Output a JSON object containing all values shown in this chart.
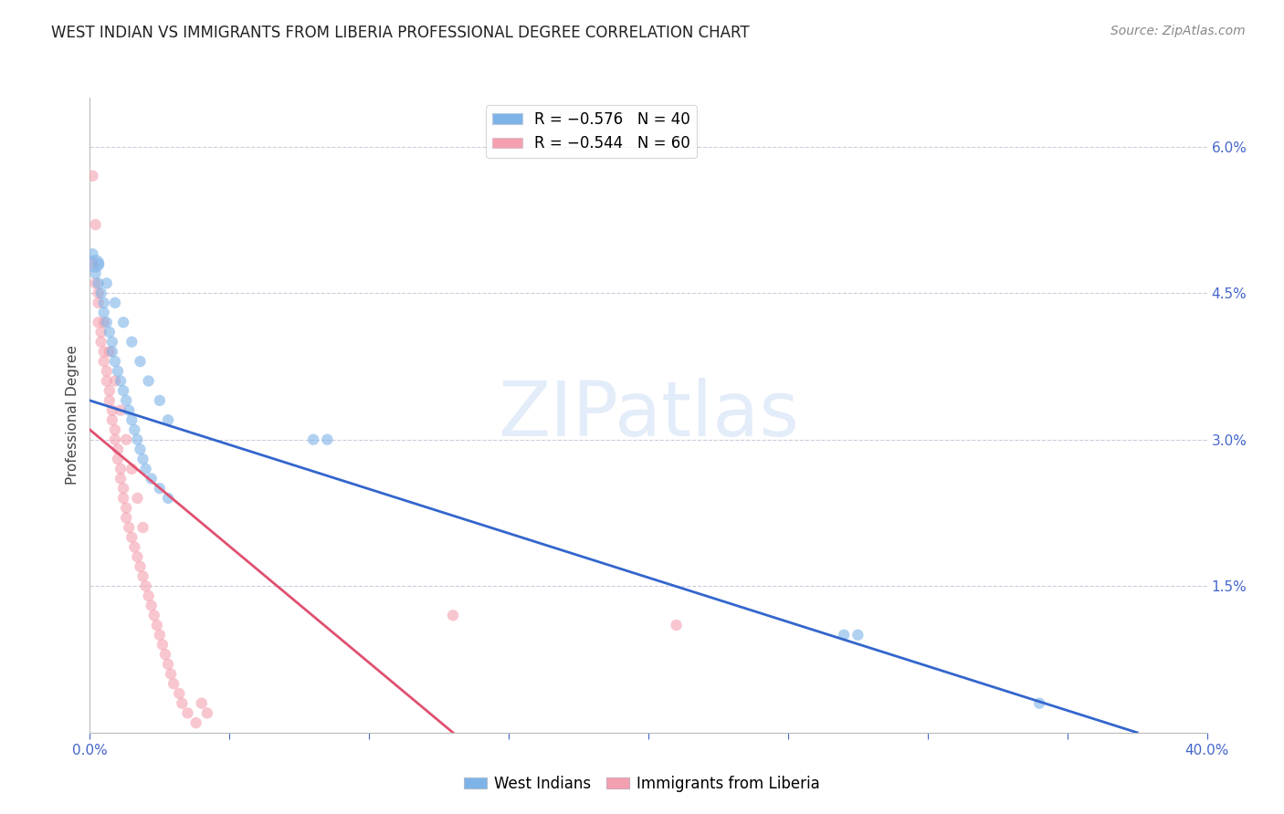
{
  "title": "WEST INDIAN VS IMMIGRANTS FROM LIBERIA PROFESSIONAL DEGREE CORRELATION CHART",
  "source": "Source: ZipAtlas.com",
  "ylabel": "Professional Degree",
  "watermark": "ZIPatlas",
  "xlim": [
    0.0,
    0.4
  ],
  "ylim": [
    0.0,
    0.065
  ],
  "xticks": [
    0.0,
    0.05,
    0.1,
    0.15,
    0.2,
    0.25,
    0.3,
    0.35,
    0.4
  ],
  "xticklabels": [
    "0.0%",
    "",
    "",
    "",
    "",
    "",
    "",
    "",
    "40.0%"
  ],
  "yticks_right": [
    0.0,
    0.015,
    0.03,
    0.045,
    0.06
  ],
  "yticklabels_right": [
    "",
    "1.5%",
    "3.0%",
    "4.5%",
    "6.0%"
  ],
  "legend1_label": "R = −0.576   N = 40",
  "legend2_label": "R = −0.544   N = 60",
  "blue_color": "#7EB3E8",
  "pink_color": "#F4A0B0",
  "blue_line_color": "#3366CC",
  "pink_line_color": "#E05070",
  "right_axis_color": "#4466CC",
  "grid_color": "#CCCCDD",
  "background_color": "#FFFFFF",
  "blue_scatter": {
    "x": [
      0.001,
      0.002,
      0.002,
      0.003,
      0.004,
      0.005,
      0.005,
      0.006,
      0.007,
      0.008,
      0.008,
      0.009,
      0.01,
      0.011,
      0.012,
      0.013,
      0.014,
      0.015,
      0.016,
      0.017,
      0.018,
      0.019,
      0.02,
      0.022,
      0.025,
      0.028,
      0.003,
      0.006,
      0.009,
      0.012,
      0.015,
      0.018,
      0.021,
      0.025,
      0.028,
      0.08,
      0.085,
      0.27,
      0.275,
      0.34
    ],
    "y": [
      0.049,
      0.048,
      0.047,
      0.046,
      0.045,
      0.044,
      0.043,
      0.042,
      0.041,
      0.04,
      0.039,
      0.038,
      0.037,
      0.036,
      0.035,
      0.034,
      0.033,
      0.032,
      0.031,
      0.03,
      0.029,
      0.028,
      0.027,
      0.026,
      0.025,
      0.024,
      0.048,
      0.046,
      0.044,
      0.042,
      0.04,
      0.038,
      0.036,
      0.034,
      0.032,
      0.03,
      0.03,
      0.01,
      0.01,
      0.003
    ],
    "sizes": [
      80,
      200,
      80,
      80,
      80,
      80,
      80,
      80,
      80,
      80,
      80,
      80,
      80,
      80,
      80,
      80,
      80,
      80,
      80,
      80,
      80,
      80,
      80,
      80,
      80,
      80,
      80,
      80,
      80,
      80,
      80,
      80,
      80,
      80,
      80,
      80,
      80,
      80,
      80,
      80
    ]
  },
  "pink_scatter": {
    "x": [
      0.001,
      0.002,
      0.002,
      0.003,
      0.003,
      0.004,
      0.004,
      0.005,
      0.005,
      0.006,
      0.006,
      0.007,
      0.007,
      0.008,
      0.008,
      0.009,
      0.009,
      0.01,
      0.01,
      0.011,
      0.011,
      0.012,
      0.012,
      0.013,
      0.013,
      0.014,
      0.015,
      0.016,
      0.017,
      0.018,
      0.019,
      0.02,
      0.021,
      0.022,
      0.023,
      0.024,
      0.025,
      0.026,
      0.027,
      0.028,
      0.029,
      0.03,
      0.032,
      0.033,
      0.035,
      0.038,
      0.04,
      0.042,
      0.13,
      0.21,
      0.001,
      0.003,
      0.005,
      0.007,
      0.009,
      0.011,
      0.013,
      0.015,
      0.017,
      0.019
    ],
    "y": [
      0.057,
      0.052,
      0.046,
      0.044,
      0.042,
      0.041,
      0.04,
      0.039,
      0.038,
      0.037,
      0.036,
      0.035,
      0.034,
      0.033,
      0.032,
      0.031,
      0.03,
      0.029,
      0.028,
      0.027,
      0.026,
      0.025,
      0.024,
      0.023,
      0.022,
      0.021,
      0.02,
      0.019,
      0.018,
      0.017,
      0.016,
      0.015,
      0.014,
      0.013,
      0.012,
      0.011,
      0.01,
      0.009,
      0.008,
      0.007,
      0.006,
      0.005,
      0.004,
      0.003,
      0.002,
      0.001,
      0.003,
      0.002,
      0.012,
      0.011,
      0.048,
      0.045,
      0.042,
      0.039,
      0.036,
      0.033,
      0.03,
      0.027,
      0.024,
      0.021
    ],
    "sizes": [
      80,
      80,
      80,
      80,
      80,
      80,
      80,
      80,
      80,
      80,
      80,
      80,
      80,
      80,
      80,
      80,
      80,
      80,
      80,
      80,
      80,
      80,
      80,
      80,
      80,
      80,
      80,
      80,
      80,
      80,
      80,
      80,
      80,
      80,
      80,
      80,
      80,
      80,
      80,
      80,
      80,
      80,
      80,
      80,
      80,
      80,
      80,
      80,
      80,
      80,
      80,
      80,
      80,
      80,
      80,
      80,
      80,
      80,
      80,
      80
    ]
  },
  "blue_trendline": {
    "x_start": 0.0,
    "y_start": 0.034,
    "x_end": 0.375,
    "y_end": 0.0
  },
  "pink_trendline": {
    "x_start": 0.0,
    "y_start": 0.031,
    "x_end": 0.13,
    "y_end": 0.0
  }
}
